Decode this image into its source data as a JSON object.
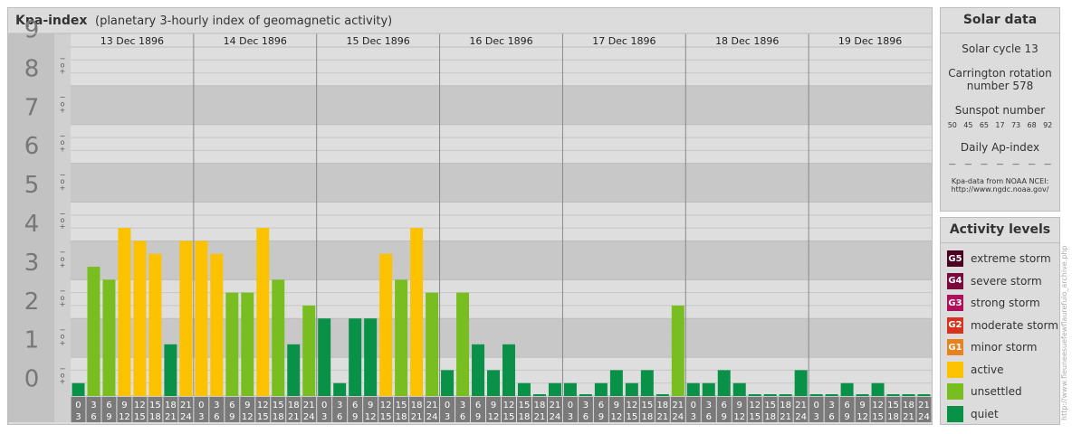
{
  "header": {
    "title": "Kpa-index",
    "subtitle": "(planetary 3-hourly index of geomagnetic activity)"
  },
  "chart_data": {
    "type": "bar",
    "ylim": [
      0,
      9
    ],
    "y_ticks": [
      "0",
      "1",
      "2",
      "3",
      "4",
      "5",
      "6",
      "7",
      "8",
      "9"
    ],
    "minor_tick_labels": [
      "+",
      "o",
      "−"
    ],
    "days": [
      "13 Dec 1896",
      "14 Dec 1896",
      "15 Dec 1896",
      "16 Dec 1896",
      "17 Dec 1896",
      "18 Dec 1896",
      "19 Dec 1896"
    ],
    "interval_start_labels": [
      "0",
      "3",
      "6",
      "9",
      "12",
      "15",
      "18",
      "21"
    ],
    "interval_end_labels": [
      "3",
      "6",
      "9",
      "12",
      "15",
      "18",
      "21",
      "24"
    ],
    "values": [
      [
        0.333,
        3.333,
        3.0,
        4.333,
        4.0,
        3.667,
        1.333,
        4.0
      ],
      [
        4.0,
        3.667,
        2.667,
        2.667,
        4.333,
        3.0,
        1.333,
        2.333
      ],
      [
        2.0,
        0.333,
        2.0,
        2.0,
        3.667,
        3.0,
        4.333,
        2.667
      ],
      [
        0.667,
        2.667,
        1.333,
        0.667,
        1.333,
        0.333,
        0.0,
        0.333
      ],
      [
        0.333,
        0.0,
        0.333,
        0.667,
        0.333,
        0.667,
        0.0,
        2.333
      ],
      [
        0.333,
        0.333,
        0.667,
        0.333,
        0.0,
        0.0,
        0.0,
        0.667
      ],
      [
        0.0,
        0.0,
        0.333,
        0.0,
        0.333,
        0.0,
        0.0,
        0.0
      ]
    ],
    "levels": {
      "quiet": {
        "max": 2.0,
        "color": "#0a9148"
      },
      "unsettled": {
        "max": 3.333,
        "color": "#78be21"
      },
      "active": {
        "max": 4.667,
        "color": "#fcc200"
      }
    }
  },
  "solar": {
    "title": "Solar data",
    "cycle": "Solar cycle 13",
    "carrington_1": "Carrington rotation",
    "carrington_2": "number 578",
    "sunspot_title": "Sunspot number",
    "sunspot_values": [
      "50",
      "45",
      "65",
      "17",
      "73",
      "68",
      "92"
    ],
    "ap_title": "Daily Ap-index",
    "ap_values": [
      "—",
      "—",
      "—",
      "—",
      "—",
      "—",
      "—"
    ],
    "credit_1": "Kpa-data from NOAA NCEI:",
    "credit_2": "http://www.ngdc.noaa.gov/"
  },
  "activity": {
    "title": "Activity levels",
    "items": [
      {
        "code": "G5",
        "label": "extreme storm",
        "color": "#4a0020"
      },
      {
        "code": "G4",
        "label": "severe storm",
        "color": "#7a0a3e"
      },
      {
        "code": "G3",
        "label": "strong storm",
        "color": "#b0105a"
      },
      {
        "code": "G2",
        "label": "moderate storm",
        "color": "#d6321e"
      },
      {
        "code": "G1",
        "label": "minor storm",
        "color": "#e8821e"
      },
      {
        "code": "",
        "label": "active",
        "color": "#fcc200"
      },
      {
        "code": "",
        "label": "unsettled",
        "color": "#78be21"
      },
      {
        "code": "",
        "label": "quiet",
        "color": "#0a9148"
      }
    ]
  },
  "watermark": "http://www.fleuneesuefewflaurefuio_archive.php"
}
